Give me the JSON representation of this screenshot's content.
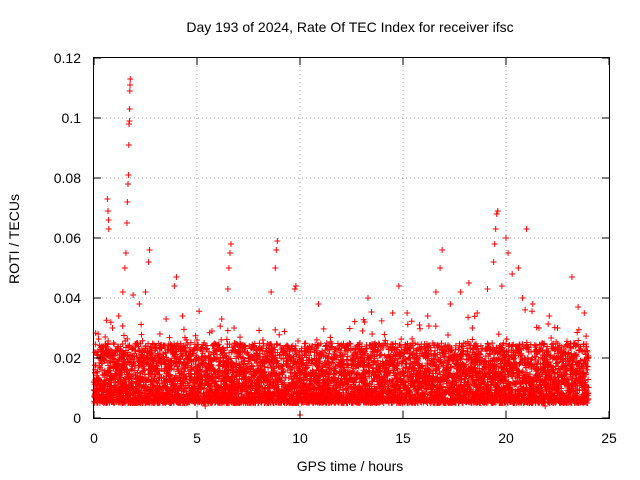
{
  "chart_data": {
    "type": "scatter",
    "title": "Day 193 of 2024, Rate Of TEC Index for receiver ifsc",
    "xlabel": "GPS time / hours",
    "ylabel": "ROTI / TECUs",
    "xlim": [
      0,
      25
    ],
    "ylim": [
      0,
      0.12
    ],
    "xticks": [
      0,
      5,
      10,
      15,
      20,
      25
    ],
    "xtick_labels": [
      "0",
      "5",
      "10",
      "15",
      "20",
      "25"
    ],
    "yticks": [
      0,
      0.02,
      0.04,
      0.06,
      0.08,
      0.1,
      0.12
    ],
    "ytick_labels": [
      "0",
      "0.02",
      "0.04",
      "0.06",
      "0.08",
      "0.1",
      "0.12"
    ],
    "grid": true,
    "marker": "+",
    "marker_color": "#ff0000",
    "series": [
      {
        "name": "ROTI",
        "x_range_hours": [
          0,
          24
        ],
        "baseline_band": [
          0.005,
          0.025
        ],
        "points": [
          {
            "x": 0.05,
            "y": 0.015
          },
          {
            "x": 0.2,
            "y": 0.028
          },
          {
            "x": 0.4,
            "y": 0.022
          },
          {
            "x": 0.55,
            "y": 0.007
          },
          {
            "x": 0.65,
            "y": 0.073
          },
          {
            "x": 0.68,
            "y": 0.069
          },
          {
            "x": 0.7,
            "y": 0.066
          },
          {
            "x": 0.72,
            "y": 0.063
          },
          {
            "x": 0.9,
            "y": 0.03
          },
          {
            "x": 1.2,
            "y": 0.034
          },
          {
            "x": 1.4,
            "y": 0.042
          },
          {
            "x": 1.5,
            "y": 0.05
          },
          {
            "x": 1.55,
            "y": 0.055
          },
          {
            "x": 1.6,
            "y": 0.065
          },
          {
            "x": 1.62,
            "y": 0.072
          },
          {
            "x": 1.65,
            "y": 0.078
          },
          {
            "x": 1.67,
            "y": 0.081
          },
          {
            "x": 1.69,
            "y": 0.091
          },
          {
            "x": 1.7,
            "y": 0.098
          },
          {
            "x": 1.72,
            "y": 0.099
          },
          {
            "x": 1.73,
            "y": 0.103
          },
          {
            "x": 1.74,
            "y": 0.109
          },
          {
            "x": 1.75,
            "y": 0.111
          },
          {
            "x": 1.76,
            "y": 0.113
          },
          {
            "x": 1.9,
            "y": 0.041
          },
          {
            "x": 2.2,
            "y": 0.038
          },
          {
            "x": 2.5,
            "y": 0.042
          },
          {
            "x": 2.65,
            "y": 0.052
          },
          {
            "x": 2.7,
            "y": 0.056
          },
          {
            "x": 2.9,
            "y": 0.008
          },
          {
            "x": 3.2,
            "y": 0.028
          },
          {
            "x": 3.5,
            "y": 0.033
          },
          {
            "x": 3.9,
            "y": 0.044
          },
          {
            "x": 4.0,
            "y": 0.047
          },
          {
            "x": 4.3,
            "y": 0.034
          },
          {
            "x": 4.6,
            "y": 0.021
          },
          {
            "x": 5.0,
            "y": 0.026
          },
          {
            "x": 5.4,
            "y": 0.004
          },
          {
            "x": 5.8,
            "y": 0.024
          },
          {
            "x": 6.2,
            "y": 0.033
          },
          {
            "x": 6.5,
            "y": 0.043
          },
          {
            "x": 6.55,
            "y": 0.05
          },
          {
            "x": 6.6,
            "y": 0.055
          },
          {
            "x": 6.65,
            "y": 0.058
          },
          {
            "x": 6.8,
            "y": 0.03
          },
          {
            "x": 7.3,
            "y": 0.024
          },
          {
            "x": 7.8,
            "y": 0.021
          },
          {
            "x": 8.2,
            "y": 0.026
          },
          {
            "x": 8.6,
            "y": 0.042
          },
          {
            "x": 8.8,
            "y": 0.05
          },
          {
            "x": 8.85,
            "y": 0.056
          },
          {
            "x": 8.9,
            "y": 0.059
          },
          {
            "x": 9.3,
            "y": 0.021
          },
          {
            "x": 9.75,
            "y": 0.043
          },
          {
            "x": 9.8,
            "y": 0.044
          },
          {
            "x": 10.0,
            "y": 0.001
          },
          {
            "x": 10.5,
            "y": 0.022
          },
          {
            "x": 10.9,
            "y": 0.038
          },
          {
            "x": 11.3,
            "y": 0.025
          },
          {
            "x": 11.8,
            "y": 0.021
          },
          {
            "x": 12.3,
            "y": 0.024
          },
          {
            "x": 12.8,
            "y": 0.02
          },
          {
            "x": 13.3,
            "y": 0.04
          },
          {
            "x": 13.5,
            "y": 0.028
          },
          {
            "x": 14.0,
            "y": 0.024
          },
          {
            "x": 14.5,
            "y": 0.035
          },
          {
            "x": 14.8,
            "y": 0.044
          },
          {
            "x": 15.2,
            "y": 0.035
          },
          {
            "x": 15.8,
            "y": 0.031
          },
          {
            "x": 16.2,
            "y": 0.034
          },
          {
            "x": 16.6,
            "y": 0.042
          },
          {
            "x": 16.8,
            "y": 0.05
          },
          {
            "x": 16.9,
            "y": 0.056
          },
          {
            "x": 17.3,
            "y": 0.038
          },
          {
            "x": 17.8,
            "y": 0.042
          },
          {
            "x": 18.2,
            "y": 0.045
          },
          {
            "x": 18.6,
            "y": 0.035
          },
          {
            "x": 19.1,
            "y": 0.043
          },
          {
            "x": 19.4,
            "y": 0.052
          },
          {
            "x": 19.45,
            "y": 0.058
          },
          {
            "x": 19.5,
            "y": 0.063
          },
          {
            "x": 19.55,
            "y": 0.068
          },
          {
            "x": 19.6,
            "y": 0.069
          },
          {
            "x": 19.8,
            "y": 0.044
          },
          {
            "x": 20.0,
            "y": 0.06
          },
          {
            "x": 20.1,
            "y": 0.055
          },
          {
            "x": 20.3,
            "y": 0.048
          },
          {
            "x": 20.6,
            "y": 0.05
          },
          {
            "x": 20.8,
            "y": 0.04
          },
          {
            "x": 21.0,
            "y": 0.063
          },
          {
            "x": 21.3,
            "y": 0.038
          },
          {
            "x": 21.6,
            "y": 0.03
          },
          {
            "x": 21.9,
            "y": 0.004
          },
          {
            "x": 22.1,
            "y": 0.034
          },
          {
            "x": 22.5,
            "y": 0.03
          },
          {
            "x": 22.9,
            "y": 0.024
          },
          {
            "x": 23.2,
            "y": 0.047
          },
          {
            "x": 23.5,
            "y": 0.037
          },
          {
            "x": 23.8,
            "y": 0.035
          },
          {
            "x": 23.95,
            "y": 0.02
          }
        ]
      }
    ]
  }
}
